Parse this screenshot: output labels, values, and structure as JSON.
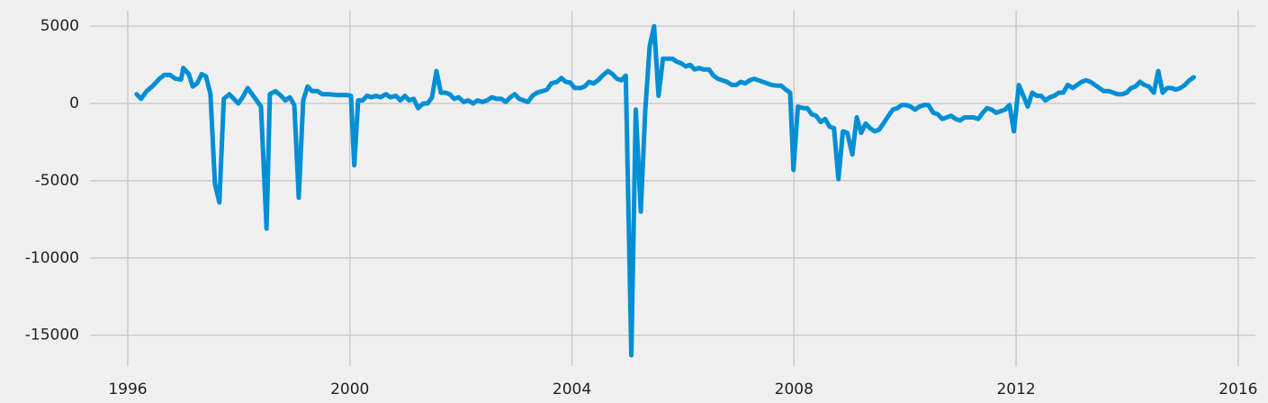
{
  "chart_data": {
    "type": "line",
    "color": "#008fd5",
    "grid": true,
    "xlim": [
      1995.32,
      2016.31
    ],
    "xticks": [
      1996,
      2000,
      2004,
      2008,
      2012,
      2016
    ],
    "ylim": [
      -17000,
      6000
    ],
    "yticks": [
      -15000,
      -10000,
      -5000,
      0,
      5000
    ],
    "x": [
      1996.16,
      1996.24,
      1996.34,
      1996.44,
      1996.57,
      1996.66,
      1996.76,
      1996.86,
      1996.96,
      1997.0,
      1997.1,
      1997.17,
      1997.25,
      1997.33,
      1997.41,
      1997.49,
      1997.57,
      1997.65,
      1997.73,
      1997.83,
      1997.91,
      1997.99,
      1998.07,
      1998.16,
      1998.24,
      1998.32,
      1998.4,
      1998.5,
      1998.56,
      1998.66,
      1998.76,
      1998.84,
      1998.92,
      1999.0,
      1999.08,
      1999.16,
      1999.24,
      1999.32,
      1999.42,
      1999.5,
      1999.61,
      1999.78,
      1999.94,
      2000.02,
      2000.08,
      2000.15,
      2000.23,
      2000.31,
      2000.39,
      2000.47,
      2000.55,
      2000.65,
      2000.73,
      2000.83,
      2000.91,
      2000.99,
      2001.07,
      2001.15,
      2001.23,
      2001.32,
      2001.4,
      2001.48,
      2001.56,
      2001.64,
      2001.72,
      2001.8,
      2001.88,
      2001.96,
      2002.05,
      2002.13,
      2002.22,
      2002.3,
      2002.39,
      2002.47,
      2002.56,
      2002.64,
      2002.73,
      2002.81,
      2002.89,
      2002.97,
      2003.05,
      2003.13,
      2003.21,
      2003.29,
      2003.37,
      2003.47,
      2003.55,
      2003.63,
      2003.73,
      2003.81,
      2003.89,
      2003.97,
      2004.05,
      2004.15,
      2004.23,
      2004.31,
      2004.39,
      2004.47,
      2004.55,
      2004.65,
      2004.73,
      2004.81,
      2004.89,
      2004.97,
      2005.07,
      2005.15,
      2005.24,
      2005.32,
      2005.4,
      2005.48,
      2005.56,
      2005.64,
      2005.72,
      2005.81,
      2005.89,
      2005.97,
      2006.05,
      2006.13,
      2006.21,
      2006.29,
      2006.37,
      2006.47,
      2006.55,
      2006.63,
      2006.71,
      2006.79,
      2006.88,
      2006.96,
      2007.04,
      2007.12,
      2007.2,
      2007.28,
      2007.36,
      2007.44,
      2007.52,
      2007.6,
      2007.69,
      2007.77,
      2007.85,
      2007.93,
      2007.99,
      2008.07,
      2008.16,
      2008.24,
      2008.32,
      2008.4,
      2008.48,
      2008.56,
      2008.64,
      2008.72,
      2008.8,
      2008.88,
      2008.96,
      2009.05,
      2009.13,
      2009.21,
      2009.29,
      2009.37,
      2009.45,
      2009.53,
      2009.61,
      2009.7,
      2009.78,
      2009.86,
      2009.94,
      2010.02,
      2010.1,
      2010.18,
      2010.26,
      2010.34,
      2010.42,
      2010.51,
      2010.59,
      2010.67,
      2010.75,
      2010.83,
      2010.91,
      2010.99,
      2011.07,
      2011.15,
      2011.23,
      2011.32,
      2011.4,
      2011.48,
      2011.56,
      2011.64,
      2011.72,
      2011.8,
      2011.88,
      2011.96,
      2012.05,
      2012.13,
      2012.21,
      2012.29,
      2012.37,
      2012.45,
      2012.53,
      2012.61,
      2012.69,
      2012.77,
      2012.85,
      2012.93,
      2013.02,
      2013.1,
      2013.18,
      2013.26,
      2013.34,
      2013.42,
      2013.5,
      2013.58,
      2013.67,
      2013.75,
      2013.83,
      2013.91,
      2013.99,
      2014.07,
      2014.15,
      2014.23,
      2014.31,
      2014.39,
      2014.48,
      2014.56,
      2014.64,
      2014.72,
      2014.8,
      2014.88,
      2014.96,
      2015.04,
      2015.12,
      2015.2
    ],
    "values": [
      600,
      300,
      800,
      1100,
      1600,
      1850,
      1850,
      1600,
      1550,
      2300,
      1900,
      1100,
      1300,
      1900,
      1750,
      600,
      -5200,
      -6400,
      300,
      600,
      300,
      0,
      400,
      1000,
      600,
      200,
      -200,
      -8100,
      600,
      800,
      500,
      200,
      400,
      -100,
      -6100,
      200,
      1100,
      800,
      800,
      600,
      600,
      550,
      550,
      500,
      -4000,
      200,
      200,
      500,
      400,
      500,
      400,
      600,
      400,
      500,
      200,
      500,
      200,
      300,
      -300,
      0,
      0,
      400,
      2100,
      700,
      700,
      600,
      300,
      400,
      100,
      200,
      0,
      200,
      100,
      200,
      400,
      300,
      300,
      100,
      400,
      600,
      300,
      200,
      100,
      500,
      700,
      800,
      900,
      1300,
      1400,
      1650,
      1400,
      1350,
      1000,
      1000,
      1100,
      1400,
      1300,
      1500,
      1800,
      2100,
      1900,
      1600,
      1500,
      1800,
      -16300,
      -400,
      -7000,
      -500,
      3700,
      5000,
      500,
      2900,
      2900,
      2900,
      2700,
      2600,
      2400,
      2500,
      2200,
      2300,
      2200,
      2200,
      1800,
      1600,
      1500,
      1400,
      1200,
      1200,
      1400,
      1300,
      1500,
      1600,
      1500,
      1400,
      1300,
      1200,
      1150,
      1150,
      900,
      700,
      -4300,
      -200,
      -300,
      -300,
      -700,
      -800,
      -1200,
      -1000,
      -1500,
      -1600,
      -4900,
      -1800,
      -1900,
      -3300,
      -900,
      -1900,
      -1300,
      -1600,
      -1800,
      -1700,
      -1300,
      -800,
      -400,
      -300,
      -100,
      -100,
      -200,
      -400,
      -200,
      -100,
      -100,
      -600,
      -700,
      -1000,
      -900,
      -800,
      -1000,
      -1100,
      -900,
      -900,
      -900,
      -1000,
      -600,
      -300,
      -400,
      -600,
      -500,
      -400,
      -100,
      -1800,
      1200,
      500,
      -200,
      700,
      500,
      500,
      200,
      400,
      500,
      700,
      700,
      1200,
      1000,
      1200,
      1400,
      1500,
      1400,
      1200,
      1000,
      800,
      800,
      700,
      600,
      600,
      700,
      1000,
      1100,
      1400,
      1200,
      1100,
      700,
      2100,
      700,
      1000,
      1000,
      900,
      1000,
      1200,
      1500,
      1700
    ]
  }
}
